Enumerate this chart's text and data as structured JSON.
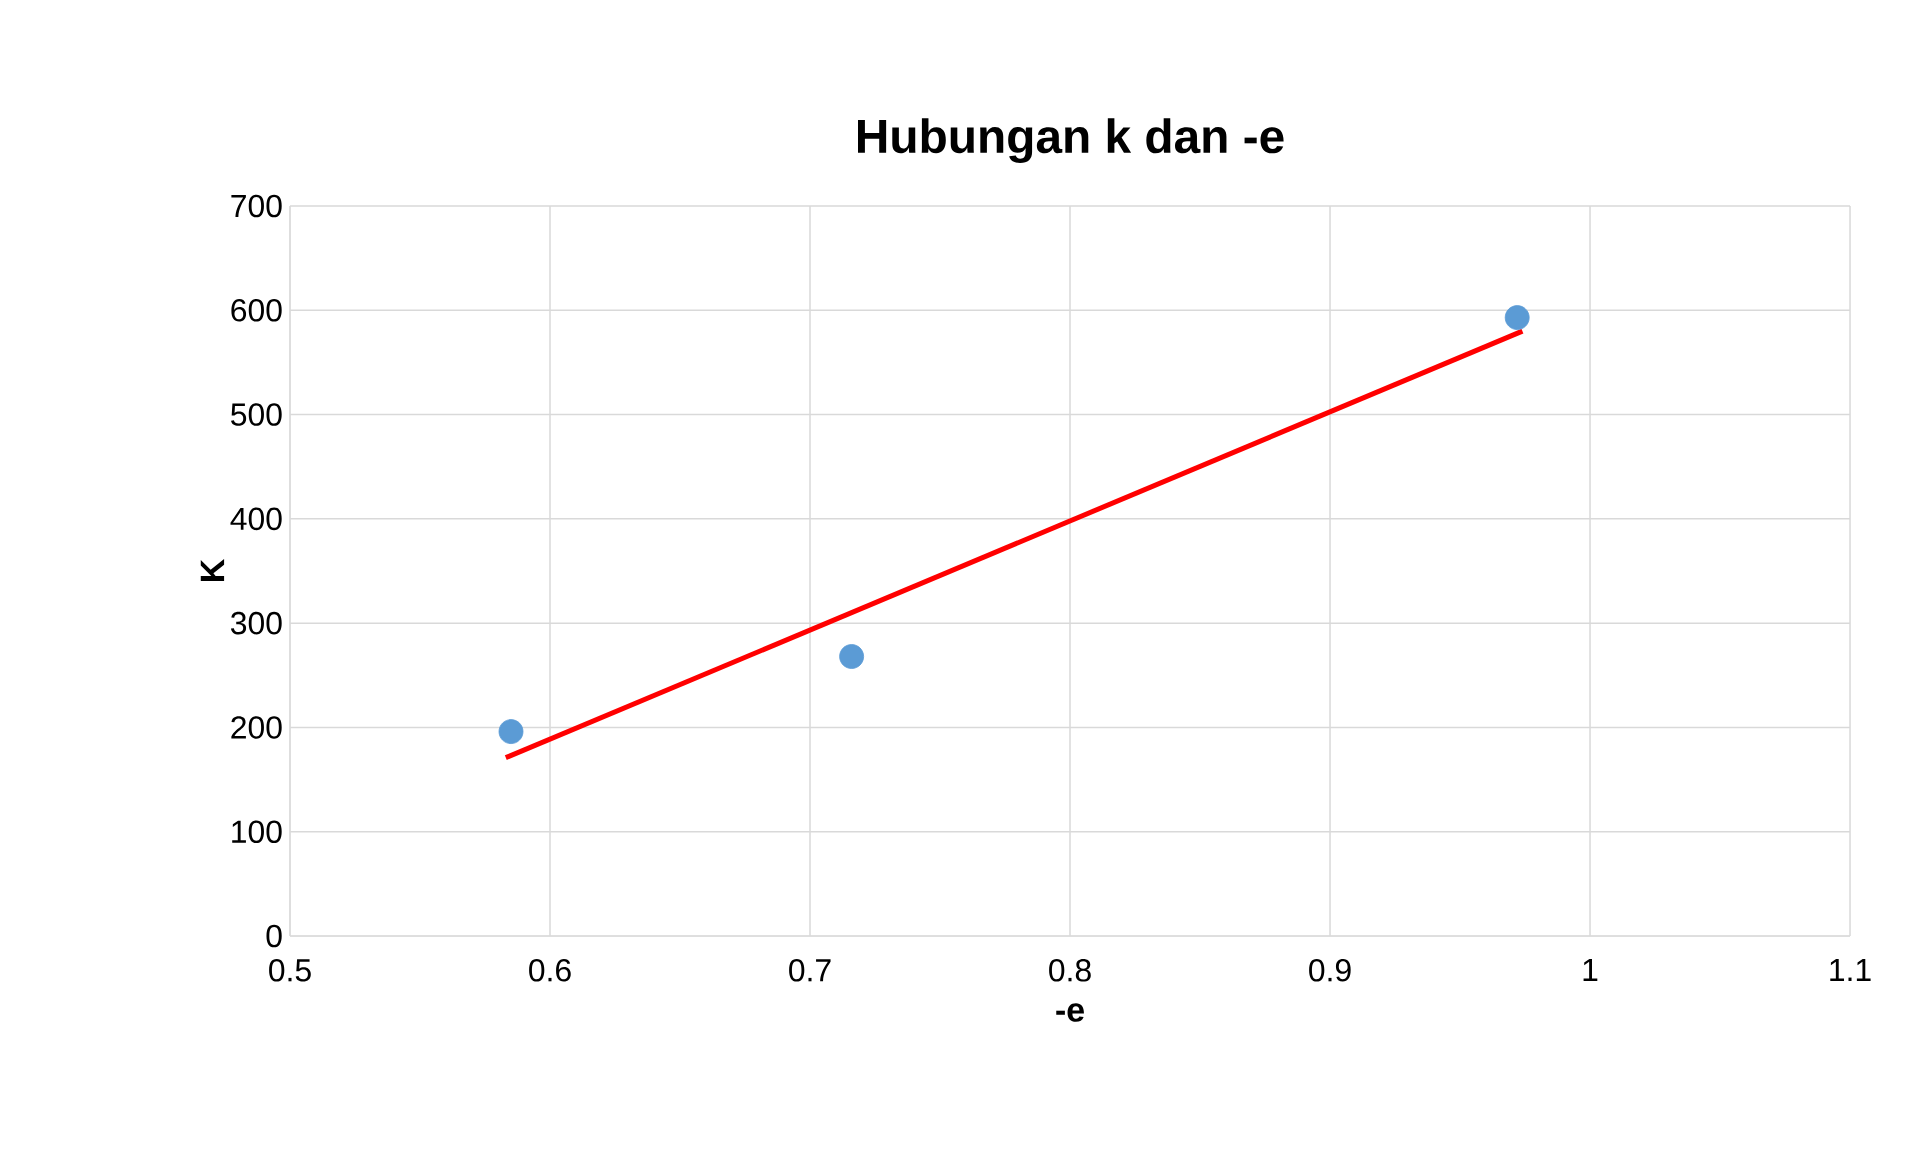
{
  "chart_data": {
    "type": "scatter",
    "title": "Hubungan k dan -e",
    "xlabel": "-e",
    "ylabel": "K",
    "xlim": [
      0.5,
      1.1
    ],
    "xticks": [
      0.5,
      0.6,
      0.7,
      0.8,
      0.9,
      1,
      1.1
    ],
    "ylim": [
      0,
      700
    ],
    "yticks": [
      0,
      100,
      200,
      300,
      400,
      500,
      600,
      700
    ],
    "grid": true,
    "marker": "circle",
    "series": [
      {
        "color": "#5b9bd5",
        "x": [
          0.585,
          0.716,
          0.972
        ],
        "values": [
          196,
          268,
          593
        ]
      },
      {
        "type": "line",
        "color": "#ff0000",
        "marker": "none",
        "line_style": "solid",
        "x": [
          0.583,
          0.974
        ],
        "values": [
          171,
          580
        ]
      }
    ]
  }
}
